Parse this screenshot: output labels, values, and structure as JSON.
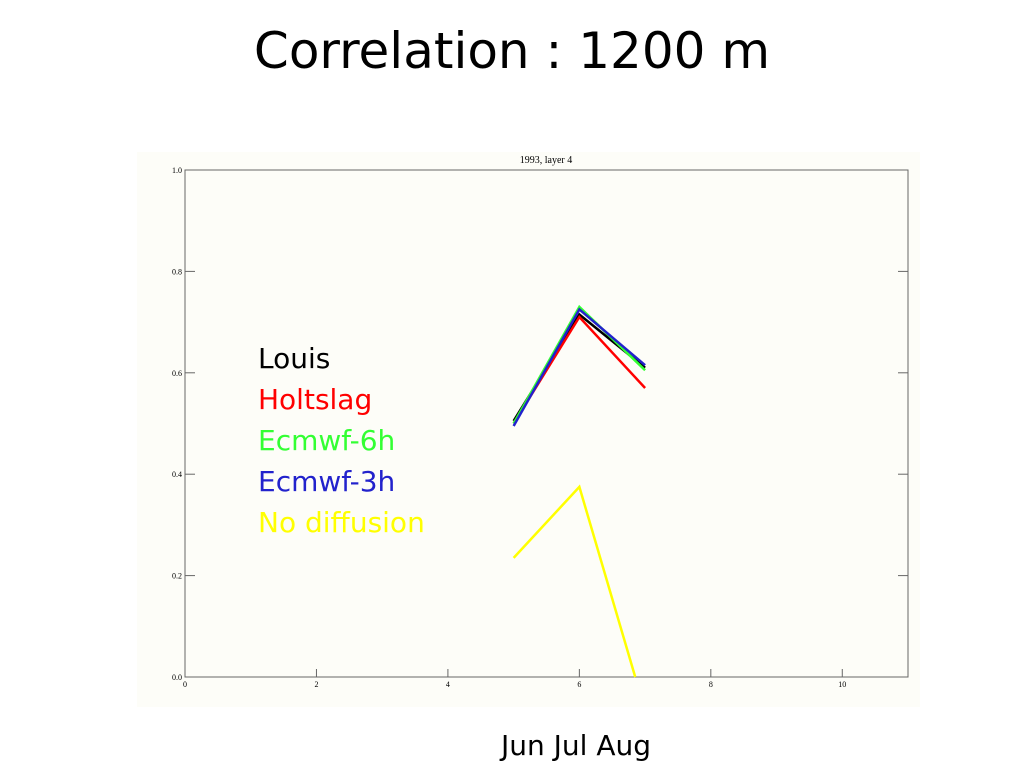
{
  "title": "Correlation : 1200 m",
  "chart_data": {
    "type": "line",
    "title": "1993, layer 4",
    "xlabel": "Jun Jul Aug",
    "x": [
      5,
      6,
      7
    ],
    "series": [
      {
        "name": "Louis",
        "color": "#000000",
        "values": [
          0.505,
          0.715,
          0.61
        ]
      },
      {
        "name": "Holtslag",
        "color": "#ff0000",
        "values": [
          0.5,
          0.71,
          0.57
        ]
      },
      {
        "name": "Ecmwf-6h",
        "color": "#33ff33",
        "values": [
          0.5,
          0.73,
          0.605
        ]
      },
      {
        "name": "Ecmwf-3h",
        "color": "#2222cc",
        "values": [
          0.495,
          0.725,
          0.615
        ]
      },
      {
        "name": "No diffusion",
        "color": "#ffff00",
        "x": [
          5,
          6,
          6.85
        ],
        "values": [
          0.235,
          0.375,
          0
        ]
      }
    ],
    "xlim": [
      0,
      11
    ],
    "xticks": [
      0,
      2,
      4,
      6,
      8,
      10
    ],
    "ylim": [
      0,
      1
    ],
    "yticks": [
      {
        "value": 0,
        "label": "0.0"
      },
      0.2,
      0.4,
      0.6,
      0.8,
      {
        "value": 1,
        "label": "1.0"
      }
    ]
  }
}
